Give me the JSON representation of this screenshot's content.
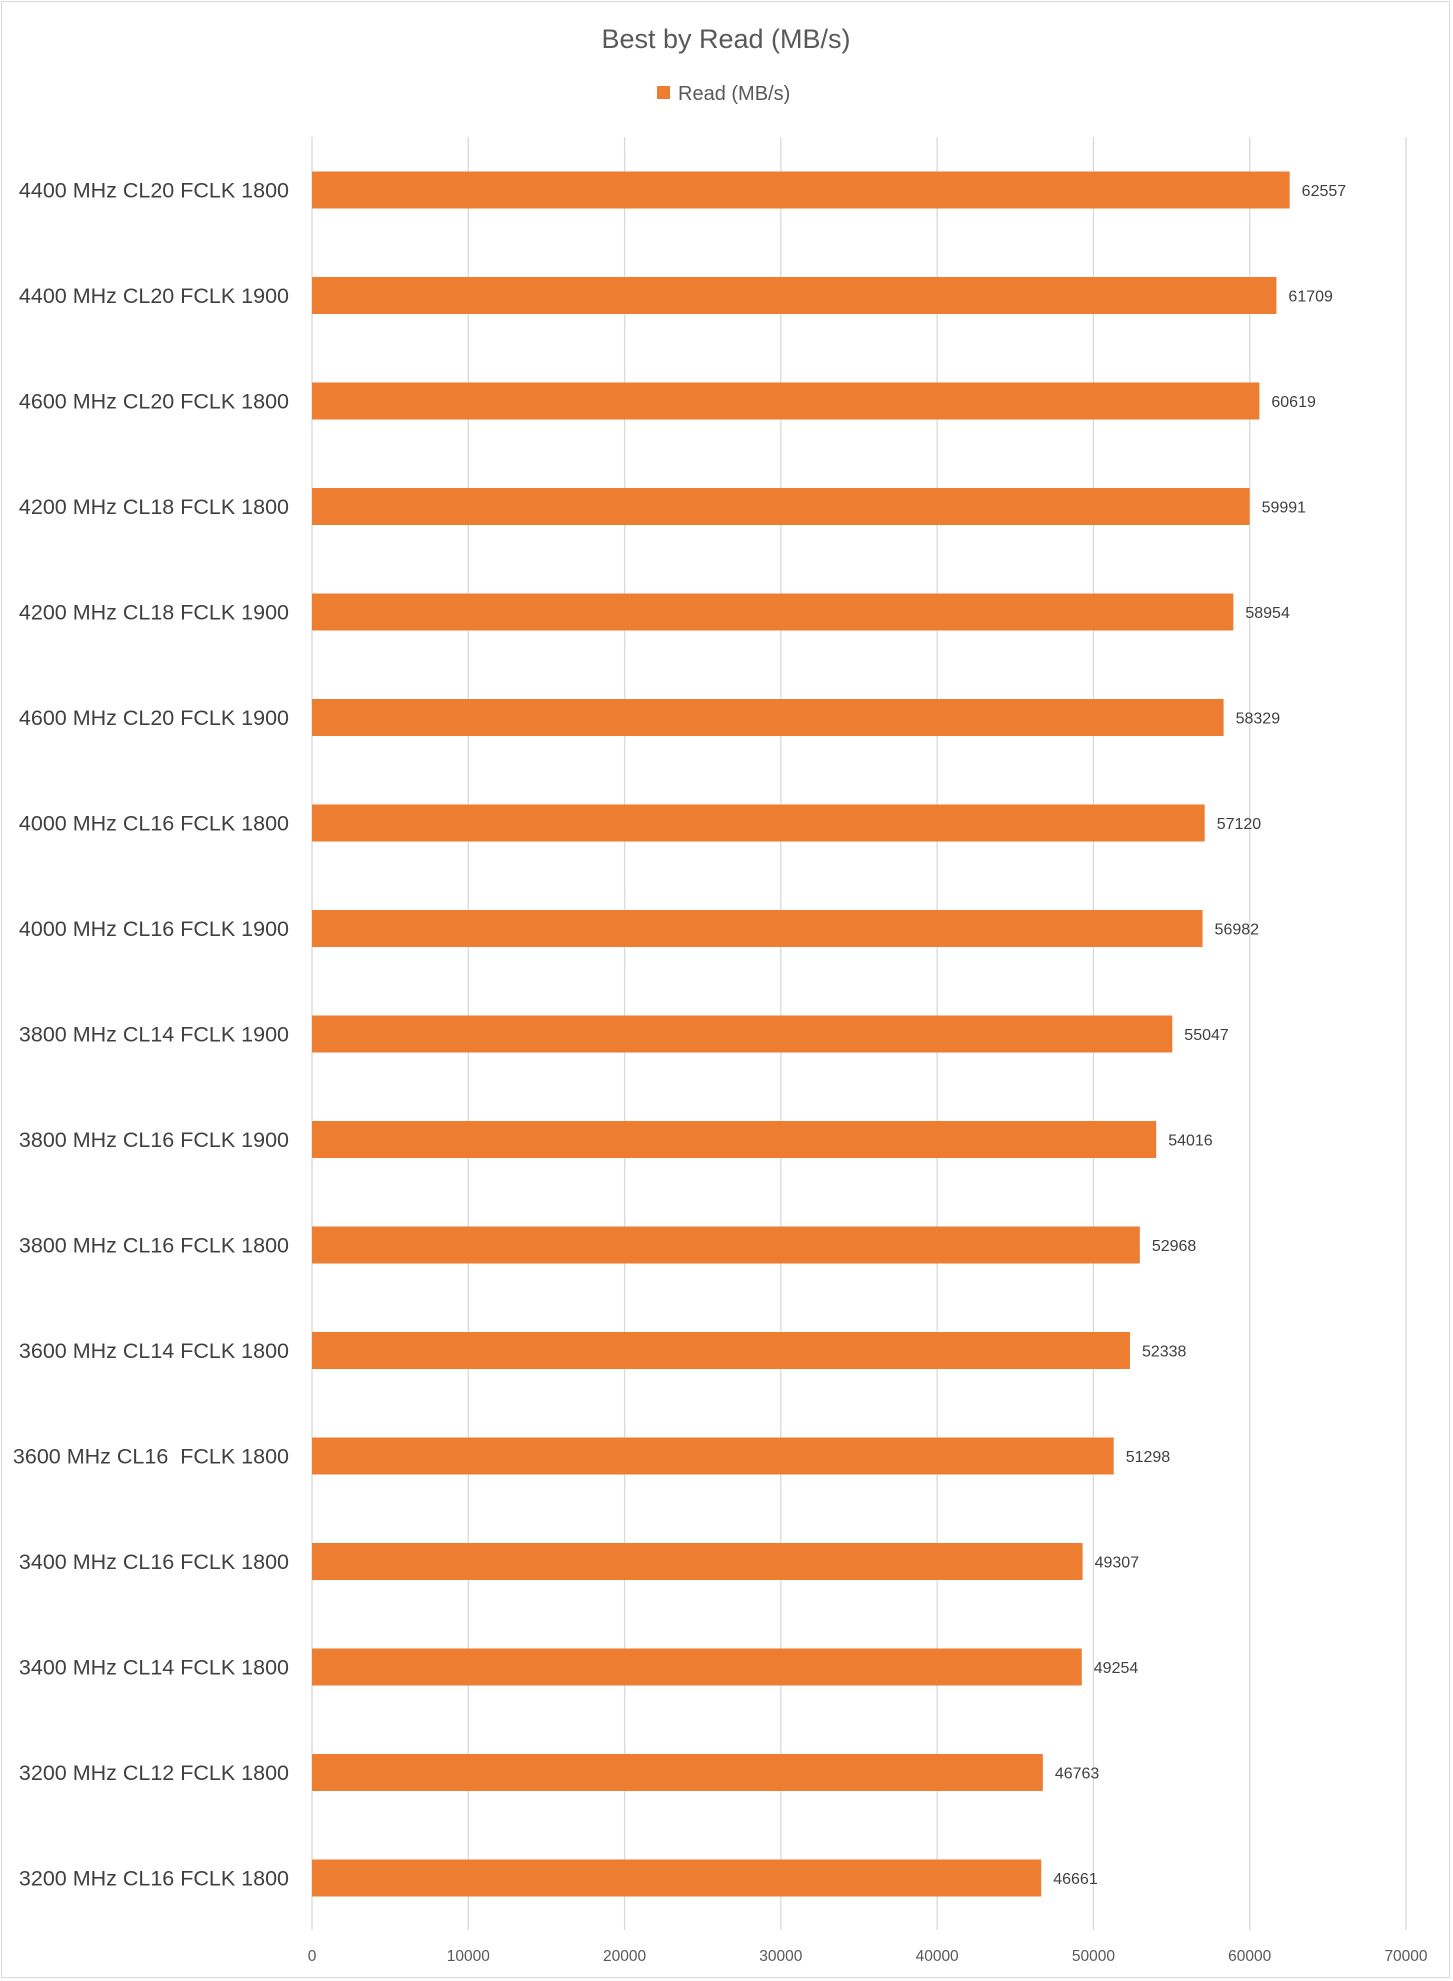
{
  "chart_data": {
    "type": "bar",
    "orientation": "horizontal",
    "title": "Best by Read (MB/s)",
    "legend_position": "top",
    "xlim": [
      0,
      70000
    ],
    "x_ticks": [
      0,
      10000,
      20000,
      30000,
      40000,
      50000,
      60000,
      70000
    ],
    "grid": true,
    "bar_color": "#ED7D31",
    "grid_color": "#d9d9d9",
    "series": [
      {
        "name": "Read (MB/s)",
        "values": [
          62557,
          61709,
          60619,
          59991,
          58954,
          58329,
          57120,
          56982,
          55047,
          54016,
          52968,
          52338,
          51298,
          49307,
          49254,
          46763,
          46661
        ]
      }
    ],
    "categories": [
      "4400 MHz CL20 FCLK 1800",
      "4400 MHz CL20 FCLK 1900",
      "4600 MHz CL20 FCLK 1800",
      "4200 MHz CL18 FCLK 1800",
      "4200 MHz CL18 FCLK 1900",
      "4600 MHz CL20 FCLK 1900",
      "4000 MHz CL16 FCLK 1800",
      "4000 MHz CL16 FCLK 1900",
      "3800 MHz CL14 FCLK 1900",
      "3800 MHz CL16 FCLK 1900",
      "3800 MHz CL16 FCLK 1800",
      "3600 MHz CL14 FCLK 1800",
      "3600 MHz CL16  FCLK 1800",
      "3400 MHz CL16 FCLK 1800",
      "3400 MHz CL14 FCLK 1800",
      "3200 MHz CL12 FCLK 1800",
      "3200 MHz CL16 FCLK 1800"
    ]
  }
}
